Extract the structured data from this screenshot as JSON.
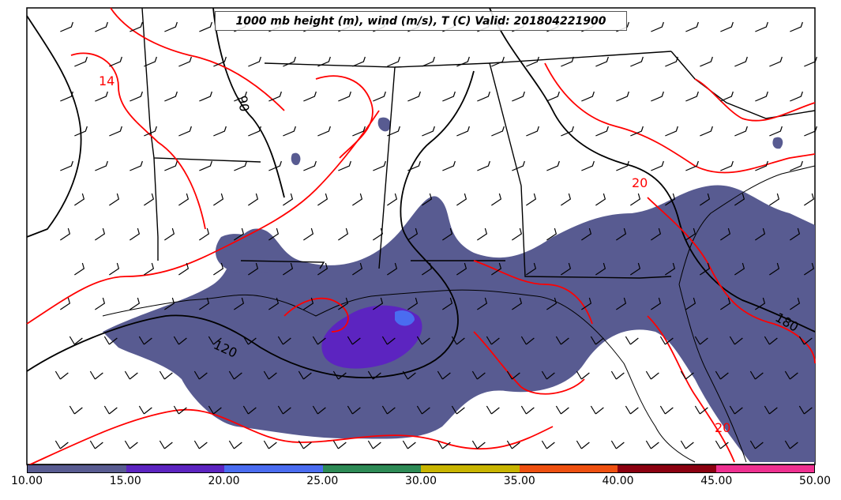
{
  "title": "1000 mb height (m), wind (m/s), T (C) Valid: 201804221900",
  "colorbar": {
    "colors": [
      "#585b91",
      "#5c24c0",
      "#4a6cf0",
      "#2d8a55",
      "#c8b400",
      "#ee5010",
      "#8b0010",
      "#ee3090"
    ],
    "ticks": [
      "10.00",
      "15.00",
      "20.00",
      "25.00",
      "30.00",
      "35.00",
      "40.00",
      "45.00",
      "50.00"
    ]
  },
  "contour_labels": {
    "temperature": [
      "14",
      "20",
      "20"
    ],
    "height": [
      "90",
      "120",
      "180"
    ]
  },
  "colors": {
    "temperature_contour": "#ff0000",
    "height_contour": "#000000",
    "precip_fill": "#585b91",
    "precip_heavy": "#5c24c0"
  }
}
